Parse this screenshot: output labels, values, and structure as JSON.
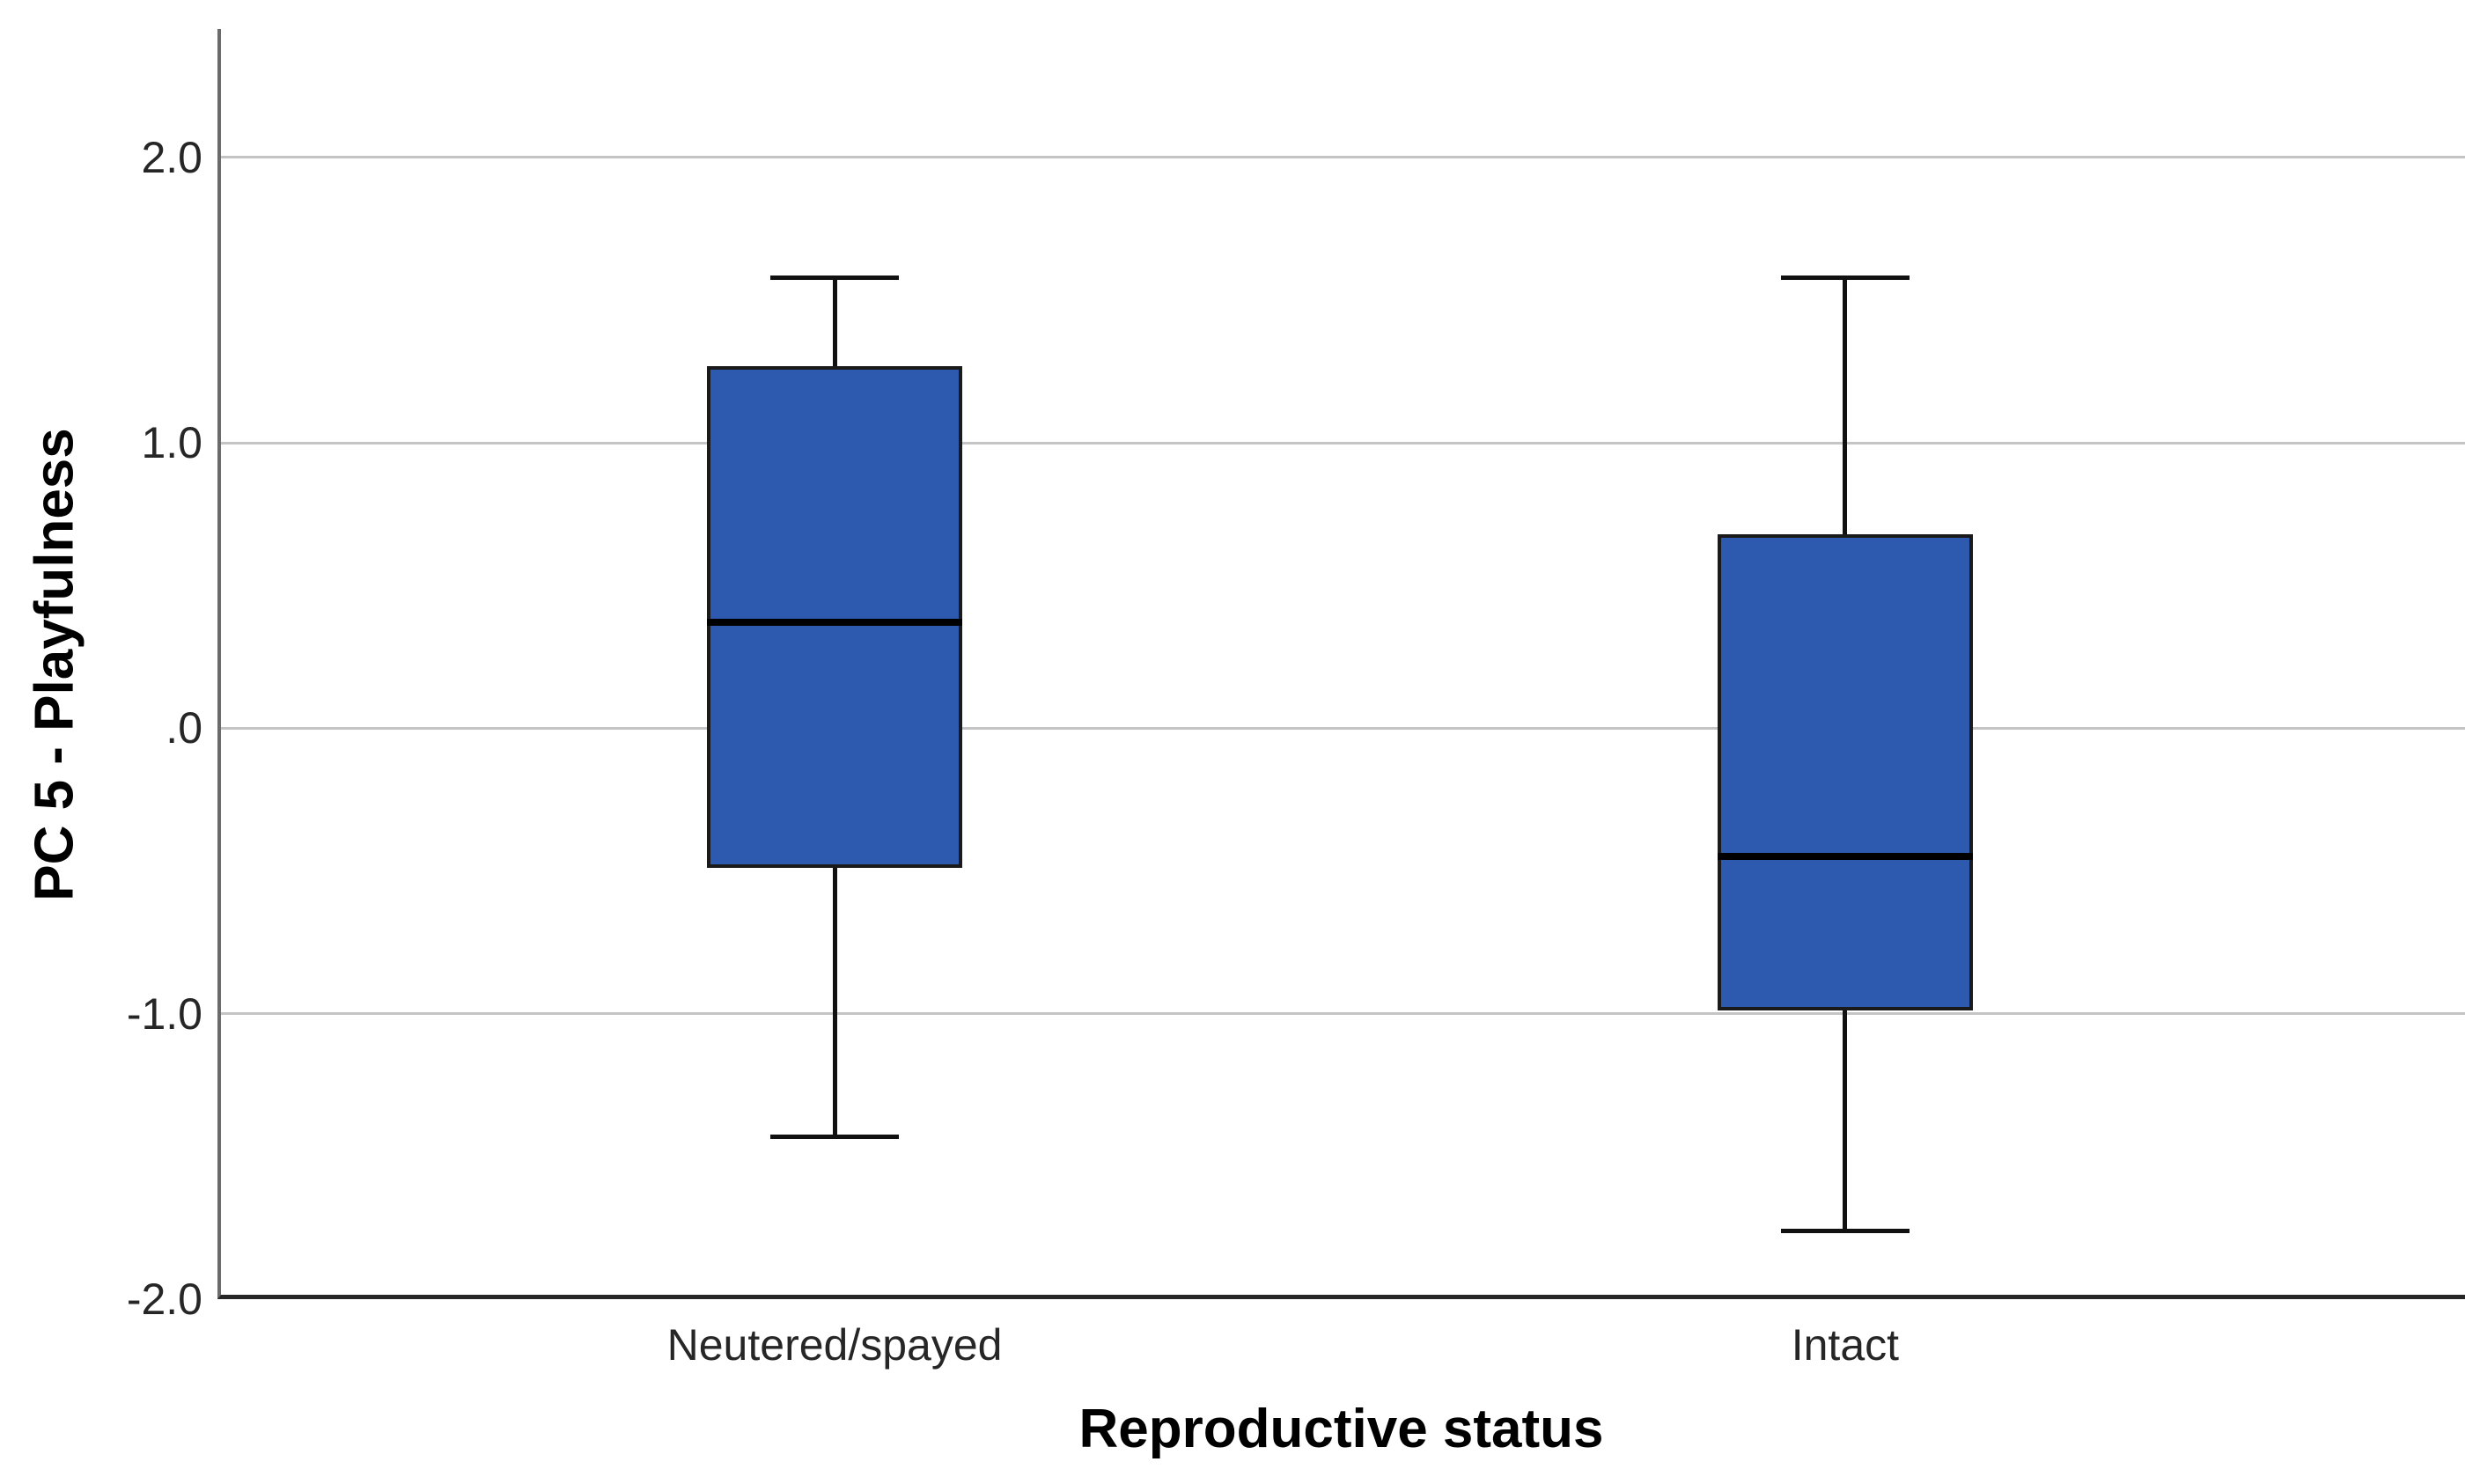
{
  "chart_data": {
    "type": "boxplot",
    "title": "",
    "xlabel": "Reproductive status",
    "ylabel": "PC 5 - Playfulness",
    "categories": [
      "Neutered/spayed",
      "Intact"
    ],
    "ylim": [
      -2.0,
      2.45
    ],
    "grid": "horizontal",
    "y_ticks": [
      {
        "value": 2.0,
        "label": "2.0"
      },
      {
        "value": 1.0,
        "label": "1.0"
      },
      {
        "value": 0.0,
        "label": ".0"
      },
      {
        "value": -1.0,
        "label": "-1.0"
      },
      {
        "value": -2.0,
        "label": "-2.0"
      }
    ],
    "series": [
      {
        "category": "Neutered/spayed",
        "whisker_low": -1.43,
        "q1": -0.49,
        "median": 0.37,
        "q3": 1.27,
        "whisker_high": 1.58
      },
      {
        "category": "Intact",
        "whisker_low": -1.76,
        "q1": -0.99,
        "median": -0.45,
        "q3": 0.68,
        "whisker_high": 1.58
      }
    ],
    "colors": {
      "box_fill": "#2d5aae",
      "box_border": "#1a1a1a",
      "median_line": "#000000",
      "whisker": "#111111",
      "gridline": "#c4c4c4",
      "y_axis_line": "#6b6b6b",
      "x_axis_line": "#262626",
      "text": "#262626"
    }
  }
}
